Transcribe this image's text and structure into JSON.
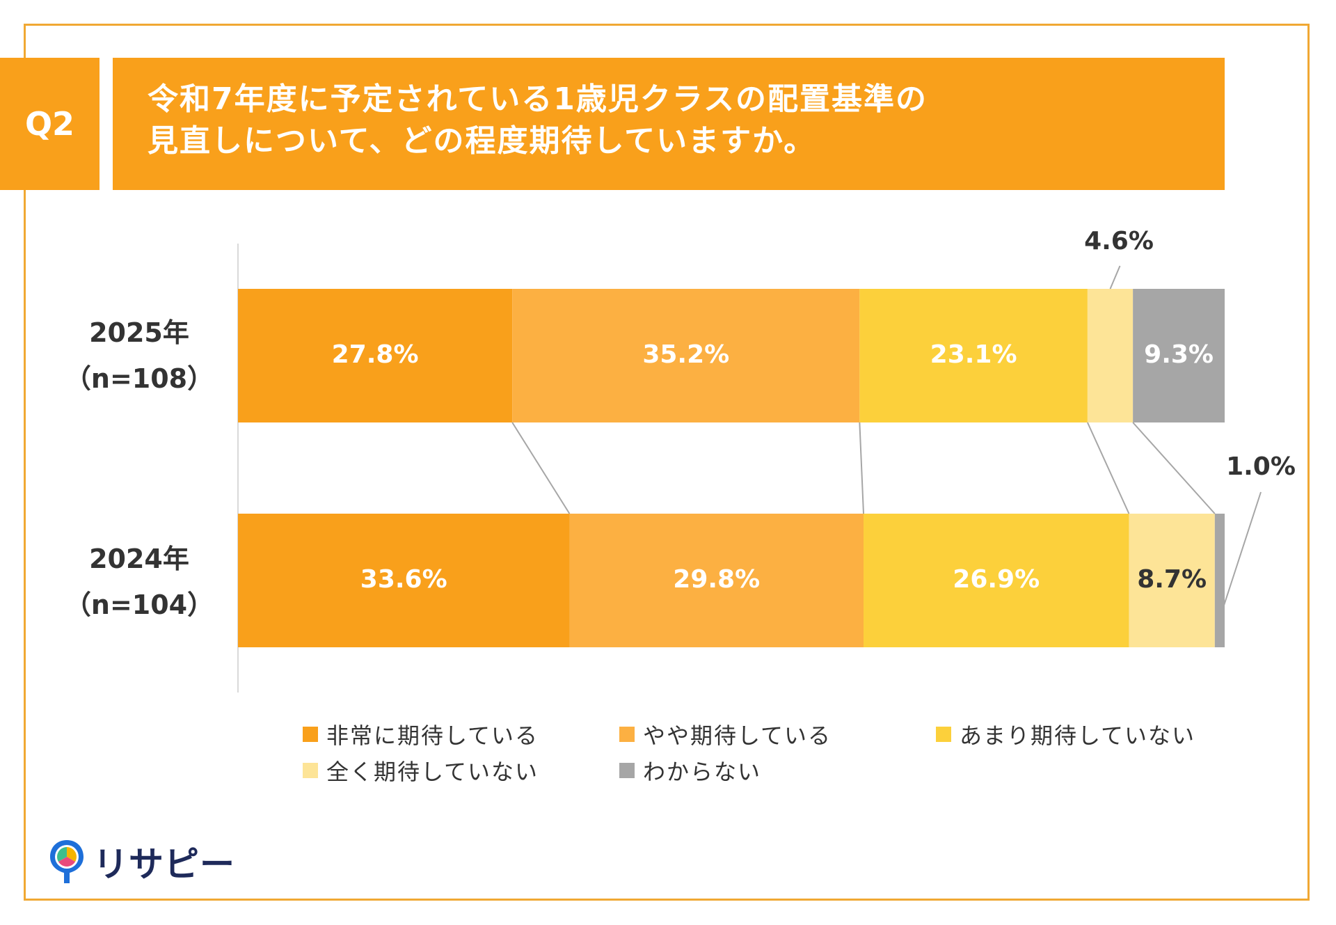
{
  "header": {
    "q_label": "Q2",
    "title_line1": "令和7年度に予定されている1歳児クラスの配置基準の",
    "title_line2": "見直しについて、どの程度期待していますか。"
  },
  "brand": {
    "name": "リサピー"
  },
  "colors": {
    "accent": "#F9A01B",
    "frame": "#F0A833",
    "series": [
      "#F9A01B",
      "#FCB042",
      "#FCD03B",
      "#FDE497",
      "#A6A6A6"
    ]
  },
  "chart_data": {
    "type": "bar",
    "orientation": "horizontal",
    "stacked": true,
    "normalized": true,
    "categories": [
      {
        "year": "2025年",
        "n": "（n=108）"
      },
      {
        "year": "2024年",
        "n": "（n=104）"
      }
    ],
    "series": [
      {
        "name": "非常に期待している",
        "values": [
          27.8,
          33.6
        ]
      },
      {
        "name": "やや期待している",
        "values": [
          35.2,
          29.8
        ]
      },
      {
        "name": "あまり期待していない",
        "values": [
          23.1,
          26.9
        ]
      },
      {
        "name": "全く期待していない",
        "values": [
          4.6,
          8.7
        ]
      },
      {
        "name": "わからない",
        "values": [
          9.3,
          1.0
        ]
      }
    ],
    "data_labels": [
      [
        "27.8%",
        "35.2%",
        "23.1%",
        "4.6%",
        "9.3%"
      ],
      [
        "33.6%",
        "29.8%",
        "26.9%",
        "8.7%",
        "1.0%"
      ]
    ],
    "xlim": [
      0,
      100
    ],
    "legend_position": "bottom"
  }
}
